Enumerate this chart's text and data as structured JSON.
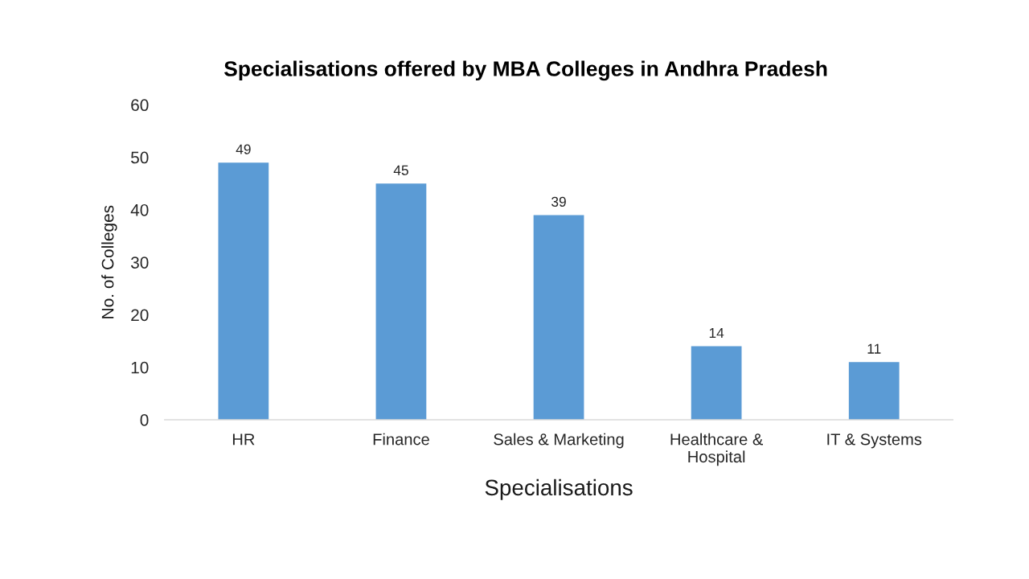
{
  "chart_data": {
    "type": "bar",
    "title": "Specialisations offered by MBA Colleges in Andhra Pradesh",
    "xlabel": "Specialisations",
    "ylabel": "No. of Colleges",
    "categories": [
      "HR",
      "Finance",
      "Sales & Marketing",
      "Healthcare &\nHospital",
      "IT & Systems"
    ],
    "values": [
      49,
      45,
      39,
      14,
      11
    ],
    "color": "#5b9bd5",
    "ylim": [
      0,
      60
    ],
    "yticks": [
      0,
      10,
      20,
      30,
      40,
      50,
      60
    ],
    "data_labels": true,
    "grid": false,
    "legend": false
  }
}
